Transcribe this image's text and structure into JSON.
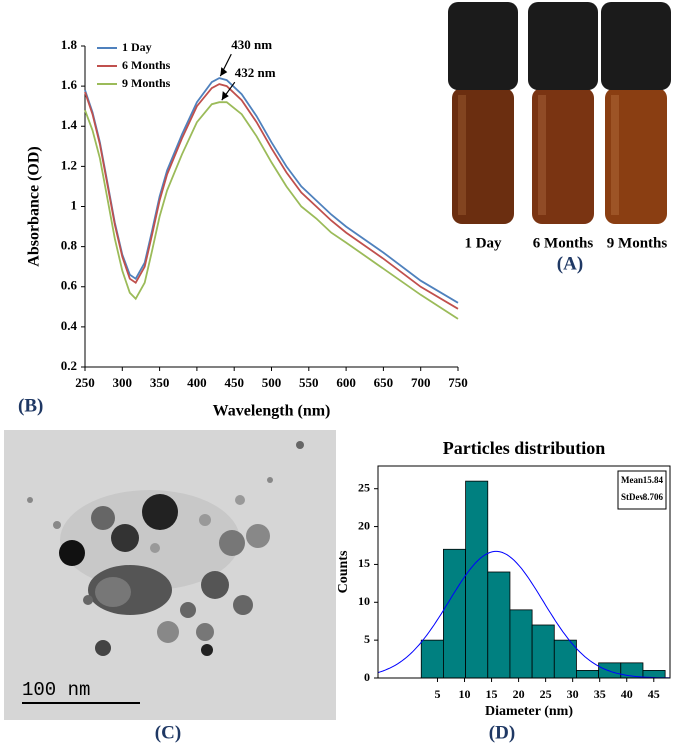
{
  "chart_data": [
    {
      "type": "line",
      "panel_label": "(B)",
      "x_label": "Wavelength (nm)",
      "y_label": "Absorbance (OD)",
      "x": [
        250,
        260,
        270,
        280,
        290,
        300,
        310,
        318,
        330,
        340,
        350,
        360,
        380,
        400,
        420,
        430,
        440,
        460,
        480,
        500,
        520,
        540,
        560,
        580,
        600,
        650,
        700,
        750
      ],
      "series": [
        {
          "name": "1 Day",
          "color": "#4f81bd",
          "values": [
            1.58,
            1.47,
            1.32,
            1.12,
            0.92,
            0.76,
            0.66,
            0.64,
            0.72,
            0.88,
            1.05,
            1.18,
            1.36,
            1.52,
            1.62,
            1.64,
            1.63,
            1.56,
            1.45,
            1.32,
            1.2,
            1.1,
            1.03,
            0.96,
            0.9,
            0.77,
            0.63,
            0.52
          ]
        },
        {
          "name": "6 Months",
          "color": "#c0504d",
          "values": [
            1.57,
            1.46,
            1.31,
            1.11,
            0.91,
            0.75,
            0.64,
            0.62,
            0.7,
            0.86,
            1.03,
            1.16,
            1.34,
            1.5,
            1.59,
            1.61,
            1.6,
            1.53,
            1.42,
            1.29,
            1.17,
            1.07,
            1.0,
            0.93,
            0.87,
            0.74,
            0.6,
            0.49
          ]
        },
        {
          "name": "9 Months",
          "color": "#9bbb59",
          "values": [
            1.48,
            1.38,
            1.24,
            1.04,
            0.84,
            0.68,
            0.57,
            0.54,
            0.62,
            0.78,
            0.95,
            1.08,
            1.26,
            1.42,
            1.51,
            1.52,
            1.52,
            1.46,
            1.35,
            1.22,
            1.1,
            1.0,
            0.94,
            0.87,
            0.82,
            0.69,
            0.56,
            0.44
          ]
        }
      ],
      "annotations": [
        {
          "text": "430 nm",
          "x": 430,
          "y": 1.64
        },
        {
          "text": "432 nm",
          "x": 432,
          "y": 1.52
        }
      ],
      "xlim": [
        250,
        750
      ],
      "ylim": [
        0.2,
        1.8
      ],
      "xticks": [
        250,
        300,
        350,
        400,
        450,
        500,
        550,
        600,
        650,
        700,
        750
      ],
      "yticks": [
        0.2,
        0.4,
        0.6,
        0.8,
        1,
        1.2,
        1.4,
        1.6,
        1.8
      ],
      "legend": "top-left"
    },
    {
      "type": "histogram",
      "title": "Particles distribution",
      "panel_label": "(D)",
      "x_label": "Diameter (nm)",
      "y_label": "Counts",
      "bins": [
        2,
        6.1,
        10.2,
        14.3,
        18.4,
        22.5,
        26.6,
        30.7,
        34.8,
        38.9,
        43,
        47.1
      ],
      "values": [
        5,
        17,
        26,
        14,
        9,
        7,
        5,
        1,
        2,
        2,
        1
      ],
      "color": "#008080",
      "curve_color": "#0000ff",
      "stats": [
        {
          "label": "Mean",
          "value": 15.84
        },
        {
          "label": "StDev",
          "value": 8.706
        }
      ],
      "xlim": [
        -6,
        48
      ],
      "ylim": [
        0,
        28
      ],
      "xticks": [
        5,
        10,
        15,
        20,
        25,
        30,
        35,
        40,
        45
      ],
      "yticks": [
        0,
        5,
        10,
        15,
        20,
        25
      ]
    }
  ],
  "photo": {
    "labels": [
      "1 Day",
      "6 Months",
      "9 Months"
    ],
    "panel_label": "(A)"
  },
  "micrograph": {
    "scale_bar": "100 nm",
    "panel_label": "(C)"
  }
}
